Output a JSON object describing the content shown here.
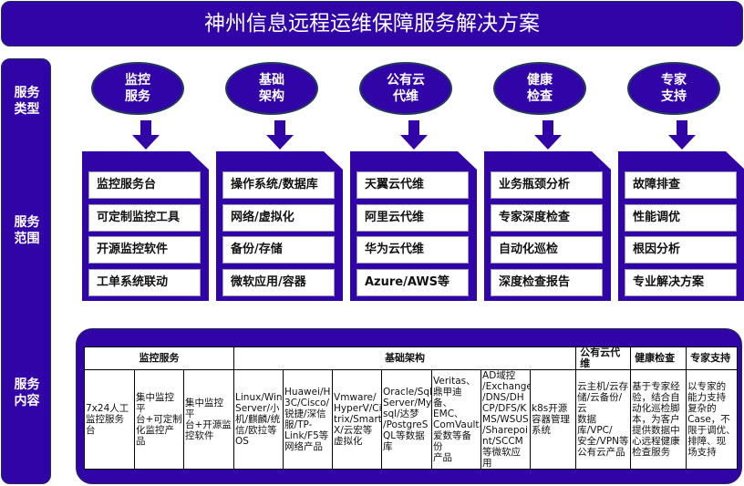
{
  "title": "神州信息远程运维保障服务解决方案",
  "side_labels": [
    "服务\n类型",
    "服务\n范围",
    "服务\n内容"
  ],
  "color_primary": "#3104a8",
  "columns": [
    {
      "type": "监控\n服务",
      "items": [
        "监控服务台",
        "可定制监控工具",
        "开源监控软件",
        "工单系统联动"
      ]
    },
    {
      "type": "基础\n架构",
      "items": [
        "操作系统/数据库",
        "网络/虚拟化",
        "备份/存储",
        "微软应用/容器"
      ]
    },
    {
      "type": "公有云\n代维",
      "items": [
        "天翼云代维",
        "阿里云代维",
        "华为云代维",
        "Azure/AWS等"
      ]
    },
    {
      "type": "健康\n检查",
      "items": [
        "业务瓶颈分析",
        "专家深度检查",
        "自动化巡检",
        "深度检查报告"
      ]
    },
    {
      "type": "专家\n支持",
      "items": [
        "故障排查",
        "性能调优",
        "根因分析",
        "专业解决方案"
      ]
    }
  ],
  "table": {
    "headers": [
      "监控服务",
      "基础架构",
      "公有云代维",
      "健康检查",
      "专家支持"
    ],
    "cells": [
      "7x24人工\n监控服务台",
      "集中监控平\n台+可定制\n化监控产品",
      "集中监控平\n台+开源监\n控软件",
      "Linux/Win\nServer/小\n机/麒麟/统\n信/欧拉等\nOS",
      "Huawei/H\n3C/Cisco/\n锐捷/深信\n服/TP-\nLink/F5等\n网络产品",
      "Vmware/\nHyperV/Ci\ntrix/Smart\nX/云宏等\n虚拟化",
      "Oracle/Sql\nServer/My\nsql/达梦\n/PostgreS\nQL等数据\n库",
      "Veritas、\n鼎甲迪备、\nEMC、\nComVault、\n爱数等备份\n产品",
      "AD域控\n/Exchange\n/DNS/DH\nCP/DFS/K\nMS/WSUS\n/Sharepoi\nnt/SCCM\n等微软应用",
      "k8s开源\n容器管理\n系统",
      "云主机/云存\n储/云备份/云\n数据库/VPC/\n安全/VPN等\n公有云产品",
      "基于专家经\n验，结合自\n动化巡检脚\n本，为客户\n提供数据中\n心远程健康\n检查服务",
      "以专家的\n能力支持\n复杂的\nCase，不\n限于调优、\n排障、现\n场支持"
    ]
  }
}
